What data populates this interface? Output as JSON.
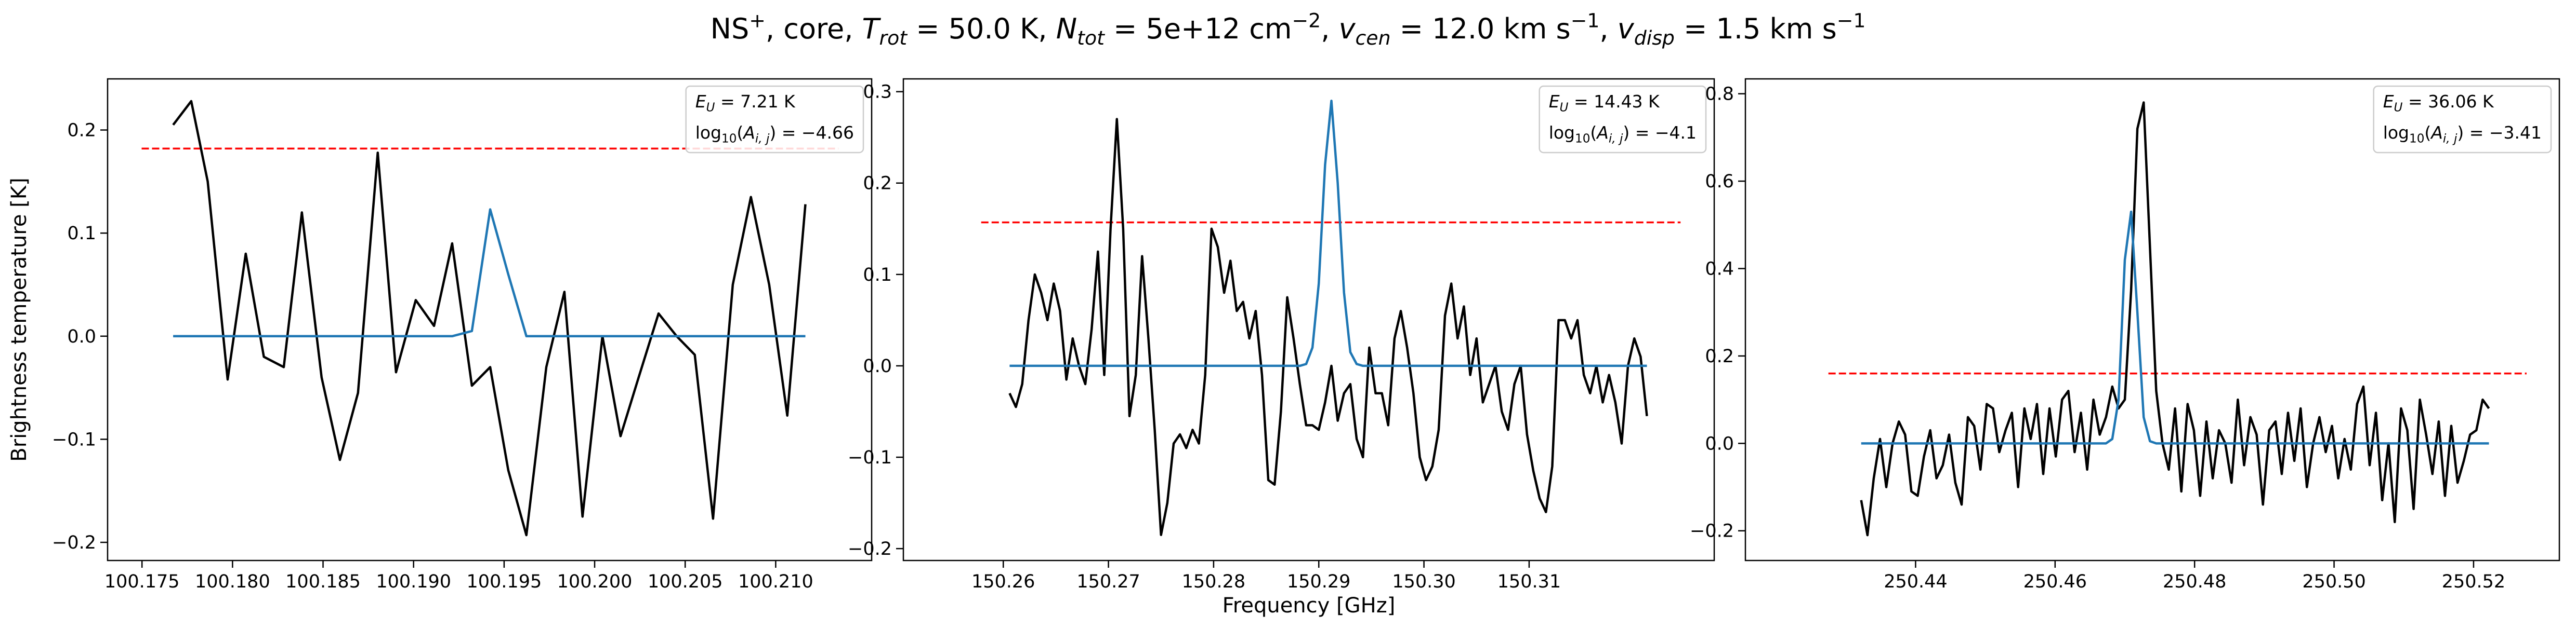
{
  "title": [
    {
      "text": "NS"
    },
    {
      "text": "+",
      "style": "sup"
    },
    {
      "text": ", core, "
    },
    {
      "text": "T",
      "style": "italic"
    },
    {
      "text": "rot",
      "style": "sub"
    },
    {
      "text": " =  50.0 K, "
    },
    {
      "text": "N",
      "style": "italic"
    },
    {
      "text": "tot",
      "style": "sub"
    },
    {
      "text": " =  5e+12 cm"
    },
    {
      "text": "−2",
      "style": "sup"
    },
    {
      "text": ", "
    },
    {
      "text": "v",
      "style": "italic"
    },
    {
      "text": "cen",
      "style": "sub"
    },
    {
      "text": " =  12.0 km s"
    },
    {
      "text": "−1",
      "style": "sup"
    },
    {
      "text": ", "
    },
    {
      "text": "v",
      "style": "italic"
    },
    {
      "text": "disp",
      "style": "sub"
    },
    {
      "text": " =  1.5 km s"
    },
    {
      "text": "−1",
      "style": "sup"
    }
  ],
  "chart_data": [
    {
      "type": "line",
      "ylabel": "Brightness temperature [K]",
      "xlim": [
        100.1731,
        100.2153
      ],
      "xticks": [
        100.175,
        {
          "value": 100.18,
          "label": "100.180"
        },
        100.185,
        {
          "value": 100.19,
          "label": "100.190"
        },
        100.195,
        {
          "value": 100.2,
          "label": "100.200"
        },
        100.205,
        {
          "value": 100.21,
          "label": "100.210"
        }
      ],
      "ylim": [
        -0.2176,
        0.2496
      ],
      "yticks": [
        {
          "value": -0.2,
          "label": "−0.2"
        },
        {
          "value": -0.1,
          "label": "−0.1"
        },
        {
          "value": 0,
          "label": "0.0"
        },
        0.1,
        0.2
      ],
      "x": [
        100.17672,
        100.17772,
        100.17863,
        100.17973,
        100.18073,
        100.18173,
        100.18283,
        100.18383,
        100.18492,
        100.18593,
        100.18693,
        100.18802,
        100.18903,
        100.19012,
        100.19113,
        100.19213,
        100.19322,
        100.19423,
        100.19523,
        100.19623,
        100.19733,
        100.19833,
        100.19933,
        100.20043,
        100.20143,
        100.20243,
        100.20353,
        100.20453,
        100.20553,
        100.20654,
        100.20763,
        100.20863,
        100.20964,
        100.21064,
        100.21164
      ],
      "series": [
        {
          "color": "#000000",
          "values": [
            0.205,
            0.228,
            0.15,
            -0.042,
            0.08,
            -0.02,
            -0.03,
            0.12,
            -0.04,
            -0.12,
            -0.055,
            0.178,
            -0.035,
            0.035,
            0.01,
            0.09,
            -0.048,
            -0.03,
            -0.13,
            -0.193,
            -0.03,
            0.043,
            -0.175,
            0.0,
            -0.097,
            -0.04,
            0.022,
            0.0,
            -0.018,
            -0.177,
            0.05,
            0.135,
            0.05,
            -0.077,
            0.128
          ]
        },
        {
          "color": "#1f77b4",
          "values": [
            0,
            0,
            0,
            0,
            0,
            0,
            0,
            0,
            0,
            0,
            0,
            0,
            0,
            0,
            0,
            0,
            0.005,
            0.123,
            0.06,
            0,
            0,
            0,
            0,
            0,
            0,
            0,
            0,
            0,
            0,
            0,
            0,
            0,
            0,
            0,
            0
          ]
        }
      ],
      "hline": {
        "y": 0.182,
        "xmin": 100.17498,
        "xmax": 100.21347,
        "color": "#ff0000",
        "linestyle": "dashed"
      },
      "annotations": [
        [
          {
            "text": "E",
            "style": "italic"
          },
          {
            "text": "U",
            "style": "sub"
          },
          {
            "text": " = 7.21 K"
          }
        ],
        [
          {
            "text": "log"
          },
          {
            "text": "10",
            "style": "sub-roman"
          },
          {
            "text": "("
          },
          {
            "text": "A",
            "style": "italic"
          },
          {
            "text": "i, j",
            "style": "sub"
          },
          {
            "text": ") = −4.66"
          }
        ]
      ]
    },
    {
      "type": "line",
      "xlabel": "Frequency [GHz]",
      "xlim": [
        150.2505,
        150.3276
      ],
      "xticks": [
        150.26,
        150.27,
        150.28,
        150.29,
        {
          "value": 150.3,
          "label": "150.30"
        },
        150.31
      ],
      "ylim": [
        -0.213,
        0.314
      ],
      "yticks": [
        {
          "value": -0.2,
          "label": "−0.2"
        },
        {
          "value": -0.1,
          "label": "−0.1"
        },
        {
          "value": 0,
          "label": "0.0"
        },
        0.1,
        0.2,
        0.3
      ],
      "x": [
        150.2606,
        150.2612,
        150.2618,
        150.2624,
        150.263,
        150.2636,
        150.2642,
        150.2648,
        150.2654,
        150.266,
        150.2666,
        150.2672,
        150.2678,
        150.2684,
        150.269,
        150.2696,
        150.2702,
        150.2708,
        150.2714,
        150.272,
        150.2726,
        150.2732,
        150.2738,
        150.2744,
        150.275,
        150.2756,
        150.2762,
        150.2768,
        150.2774,
        150.278,
        150.2786,
        150.2792,
        150.2798,
        150.2804,
        150.281,
        150.2816,
        150.2822,
        150.2828,
        150.2834,
        150.284,
        150.2846,
        150.2852,
        150.2858,
        150.2864,
        150.287,
        150.2876,
        150.2882,
        150.2888,
        150.2894,
        150.29,
        150.2906,
        150.2912,
        150.2918,
        150.2924,
        150.293,
        150.2936,
        150.2942,
        150.2948,
        150.2954,
        150.296,
        150.2966,
        150.2972,
        150.2978,
        150.2984,
        150.299,
        150.2996,
        150.3002,
        150.3008,
        150.3014,
        150.302,
        150.3026,
        150.3032,
        150.3038,
        150.3044,
        150.305,
        150.3056,
        150.3062,
        150.3068,
        150.3074,
        150.308,
        150.3086,
        150.3092,
        150.3098,
        150.3104,
        150.311,
        150.3116,
        150.3122,
        150.3128,
        150.3134,
        150.314,
        150.3146,
        150.3152,
        150.3158,
        150.3164,
        150.317,
        150.3176,
        150.3182,
        150.3188,
        150.3194,
        150.32,
        150.3206,
        150.3212
      ],
      "series": [
        {
          "color": "#000000",
          "values": [
            -0.03,
            -0.045,
            -0.02,
            0.05,
            0.1,
            0.08,
            0.05,
            0.09,
            0.06,
            -0.015,
            0.03,
            0.0,
            -0.02,
            0.04,
            0.125,
            -0.01,
            0.15,
            0.27,
            0.15,
            -0.055,
            -0.01,
            0.12,
            0.03,
            -0.07,
            -0.185,
            -0.15,
            -0.085,
            -0.075,
            -0.09,
            -0.07,
            -0.085,
            -0.01,
            0.15,
            0.13,
            0.08,
            0.115,
            0.06,
            0.07,
            0.03,
            0.06,
            -0.01,
            -0.125,
            -0.13,
            -0.05,
            0.075,
            0.03,
            -0.02,
            -0.065,
            -0.065,
            -0.07,
            -0.04,
            0.0,
            -0.06,
            -0.03,
            -0.02,
            -0.08,
            -0.1,
            0.02,
            -0.03,
            -0.03,
            -0.065,
            0.03,
            0.06,
            0.02,
            -0.03,
            -0.1,
            -0.125,
            -0.11,
            -0.07,
            0.055,
            0.09,
            0.03,
            0.065,
            -0.01,
            0.03,
            -0.04,
            -0.02,
            0.0,
            -0.05,
            -0.07,
            -0.02,
            0.0,
            -0.075,
            -0.115,
            -0.145,
            -0.16,
            -0.11,
            0.05,
            0.05,
            0.03,
            0.05,
            -0.01,
            -0.03,
            0.0,
            -0.04,
            -0.01,
            -0.04,
            -0.085,
            0.0,
            0.03,
            0.01,
            -0.055
          ]
        },
        {
          "color": "#1f77b4",
          "values": [
            0,
            0,
            0,
            0,
            0,
            0,
            0,
            0,
            0,
            0,
            0,
            0,
            0,
            0,
            0,
            0,
            0,
            0,
            0,
            0,
            0,
            0,
            0,
            0,
            0,
            0,
            0,
            0,
            0,
            0,
            0,
            0,
            0,
            0,
            0,
            0,
            0,
            0,
            0,
            0,
            0,
            0,
            0,
            0,
            0,
            0,
            0,
            0.002,
            0.02,
            0.09,
            0.22,
            0.29,
            0.2,
            0.08,
            0.015,
            0.002,
            0,
            0,
            0,
            0,
            0,
            0,
            0,
            0,
            0,
            0,
            0,
            0,
            0,
            0,
            0,
            0,
            0,
            0,
            0,
            0,
            0,
            0,
            0,
            0,
            0,
            0,
            0,
            0,
            0,
            0,
            0,
            0,
            0,
            0,
            0,
            0,
            0,
            0,
            0,
            0,
            0,
            0,
            0,
            0,
            0,
            0
          ]
        }
      ],
      "hline": {
        "y": 0.157,
        "xmin": 150.2579,
        "xmax": 150.3244,
        "color": "#ff0000",
        "linestyle": "dashed"
      },
      "annotations": [
        [
          {
            "text": "E",
            "style": "italic"
          },
          {
            "text": "U",
            "style": "sub"
          },
          {
            "text": " = 14.43 K"
          }
        ],
        [
          {
            "text": "log"
          },
          {
            "text": "10",
            "style": "sub-roman"
          },
          {
            "text": "("
          },
          {
            "text": "A",
            "style": "italic"
          },
          {
            "text": "i, j",
            "style": "sub"
          },
          {
            "text": ") = −4.1"
          }
        ]
      ]
    },
    {
      "type": "line",
      "xlim": [
        250.4156,
        250.5323
      ],
      "xticks": [
        250.44,
        250.46,
        250.48,
        {
          "value": 250.5,
          "label": "250.50"
        },
        250.52
      ],
      "ylim": [
        -0.268,
        0.834
      ],
      "yticks": [
        {
          "value": -0.2,
          "label": "−0.2"
        },
        {
          "value": 0,
          "label": "0.0"
        },
        0.2,
        0.4,
        0.6,
        0.8
      ],
      "x": [
        250.4322,
        250.4331,
        250.434,
        250.4349,
        250.4358,
        250.4367,
        250.4376,
        250.4385,
        250.4394,
        250.4403,
        250.4412,
        250.4421,
        250.443,
        250.4439,
        250.4448,
        250.4457,
        250.4466,
        250.4475,
        250.4484,
        250.4493,
        250.4502,
        250.4511,
        250.452,
        250.4529,
        250.4538,
        250.4547,
        250.4556,
        250.4565,
        250.4574,
        250.4583,
        250.4592,
        250.4601,
        250.461,
        250.4619,
        250.4628,
        250.4637,
        250.4646,
        250.4655,
        250.4664,
        250.4673,
        250.4682,
        250.4691,
        250.47,
        250.4709,
        250.4718,
        250.4727,
        250.4736,
        250.4745,
        250.4754,
        250.4763,
        250.4772,
        250.4781,
        250.479,
        250.4799,
        250.4808,
        250.4817,
        250.4826,
        250.4835,
        250.4844,
        250.4853,
        250.4862,
        250.4871,
        250.488,
        250.4889,
        250.4898,
        250.4907,
        250.4916,
        250.4925,
        250.4934,
        250.4943,
        250.4952,
        250.4961,
        250.497,
        250.4979,
        250.4988,
        250.4997,
        250.5006,
        250.5015,
        250.5024,
        250.5033,
        250.5042,
        250.5051,
        250.506,
        250.5069,
        250.5078,
        250.5087,
        250.5096,
        250.5105,
        250.5114,
        250.5123,
        250.5132,
        250.5141,
        250.515,
        250.5159,
        250.5168,
        250.5177,
        250.5186,
        250.5195,
        250.5204,
        250.5213,
        250.5222
      ],
      "series": [
        {
          "color": "#000000",
          "values": [
            -0.13,
            -0.21,
            -0.08,
            0.01,
            -0.1,
            0.0,
            0.05,
            0.02,
            -0.11,
            -0.12,
            -0.03,
            0.03,
            -0.08,
            -0.05,
            0.02,
            -0.09,
            -0.14,
            0.06,
            0.04,
            -0.06,
            0.09,
            0.08,
            -0.02,
            0.03,
            0.07,
            -0.1,
            0.08,
            0.01,
            0.09,
            -0.07,
            0.08,
            -0.03,
            0.1,
            0.12,
            -0.02,
            0.07,
            -0.06,
            0.1,
            0.02,
            0.06,
            0.13,
            0.08,
            0.1,
            0.35,
            0.72,
            0.78,
            0.45,
            0.12,
            0.0,
            -0.06,
            0.08,
            -0.11,
            0.09,
            0.03,
            -0.12,
            0.05,
            -0.08,
            0.03,
            0.0,
            -0.09,
            0.1,
            -0.05,
            0.06,
            0.02,
            -0.14,
            0.03,
            0.05,
            -0.07,
            0.07,
            -0.04,
            0.08,
            -0.1,
            0.0,
            0.06,
            -0.02,
            0.04,
            -0.08,
            0.01,
            -0.06,
            0.09,
            0.13,
            -0.05,
            0.07,
            -0.13,
            0.0,
            -0.18,
            0.08,
            0.03,
            -0.15,
            0.1,
            0.02,
            -0.07,
            0.05,
            -0.12,
            0.04,
            -0.09,
            -0.04,
            0.02,
            0.03,
            0.1,
            0.08
          ]
        },
        {
          "color": "#1f77b4",
          "values": [
            0,
            0,
            0,
            0,
            0,
            0,
            0,
            0,
            0,
            0,
            0,
            0,
            0,
            0,
            0,
            0,
            0,
            0,
            0,
            0,
            0,
            0,
            0,
            0,
            0,
            0,
            0,
            0,
            0,
            0,
            0,
            0,
            0,
            0,
            0,
            0,
            0,
            0,
            0,
            0,
            0.01,
            0.1,
            0.42,
            0.53,
            0.3,
            0.06,
            0.005,
            0,
            0,
            0,
            0,
            0,
            0,
            0,
            0,
            0,
            0,
            0,
            0,
            0,
            0,
            0,
            0,
            0,
            0,
            0,
            0,
            0,
            0,
            0,
            0,
            0,
            0,
            0,
            0,
            0,
            0,
            0,
            0,
            0,
            0,
            0,
            0,
            0,
            0,
            0,
            0,
            0,
            0,
            0,
            0,
            0,
            0,
            0,
            0,
            0,
            0,
            0,
            0,
            0,
            0
          ]
        }
      ],
      "hline": {
        "y": 0.16,
        "xmin": 250.4275,
        "xmax": 250.5276,
        "color": "#ff0000",
        "linestyle": "dashed"
      },
      "annotations": [
        [
          {
            "text": "E",
            "style": "italic"
          },
          {
            "text": "U",
            "style": "sub"
          },
          {
            "text": " = 36.06 K"
          }
        ],
        [
          {
            "text": "log"
          },
          {
            "text": "10",
            "style": "sub-roman"
          },
          {
            "text": "("
          },
          {
            "text": "A",
            "style": "italic"
          },
          {
            "text": "i, j",
            "style": "sub"
          },
          {
            "text": ") = −3.41"
          }
        ]
      ]
    }
  ]
}
